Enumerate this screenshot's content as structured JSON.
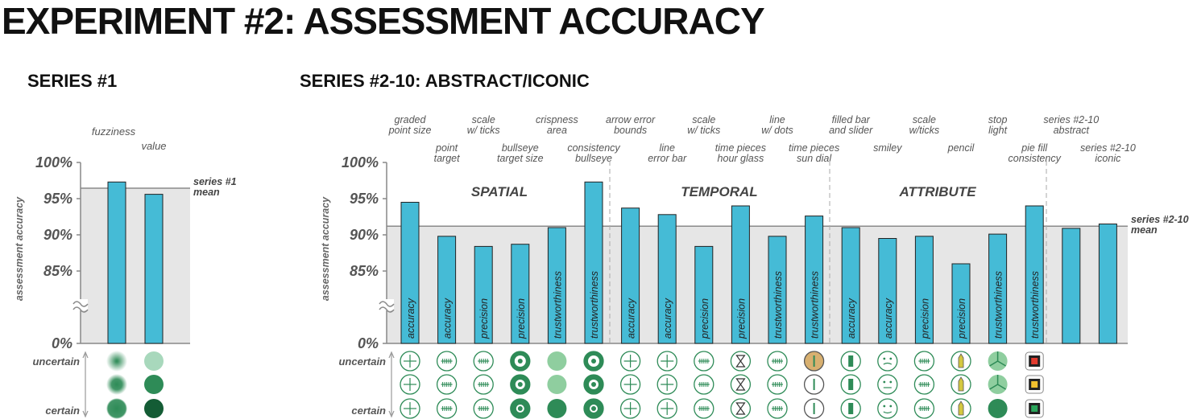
{
  "title": "EXPERIMENT #2:  ASSESSMENT ACCURACY",
  "chart_data": [
    {
      "type": "bar",
      "title": "SERIES #1",
      "ylabel": "assessment accuracy",
      "yticks": [
        "100%",
        "95%",
        "90%",
        "85%",
        "0%"
      ],
      "ylim": [
        80,
        100
      ],
      "axis_break": true,
      "categories": [
        "fuzziness",
        "value"
      ],
      "values": [
        97.3,
        95.6
      ],
      "mean": 96.45,
      "mean_label": [
        "series #1",
        "mean"
      ],
      "color": "#45bbd6",
      "scale_labels": {
        "top": "uncertain",
        "bottom": "certain"
      },
      "glyph_colors": [
        "#5aa97a",
        "#2e8b57",
        "#145c35",
        "#a8d8bc"
      ]
    },
    {
      "type": "bar",
      "title": "SERIES #2-10: ABSTRACT/ICONIC",
      "ylabel": "assessment accuracy",
      "yticks": [
        "100%",
        "95%",
        "90%",
        "85%",
        "0%"
      ],
      "ylim": [
        80,
        100
      ],
      "axis_break": true,
      "groups": [
        "SPATIAL",
        "TEMPORAL",
        "ATTRIBUTE"
      ],
      "categories": [
        [
          "graded",
          "point size"
        ],
        [
          "point",
          "target"
        ],
        [
          "scale",
          "w/ ticks"
        ],
        [
          "bullseye",
          "target size"
        ],
        [
          "crispness",
          "area"
        ],
        [
          "consistency",
          "bullseye"
        ],
        [
          "arrow error",
          "bounds"
        ],
        [
          "line",
          "error bar"
        ],
        [
          "scale",
          "w/ ticks"
        ],
        [
          "time pieces",
          "hour glass"
        ],
        [
          "line",
          "w/ dots"
        ],
        [
          "time pieces",
          "sun dial"
        ],
        [
          "filled bar",
          "and slider"
        ],
        [
          "smiley"
        ],
        [
          "scale",
          "w/ticks"
        ],
        [
          "pencil"
        ],
        [
          "stop",
          "light"
        ],
        [
          "pie fill",
          "consistency"
        ],
        [
          "series #2-10",
          "abstract"
        ],
        [
          "series #2-10",
          "iconic"
        ]
      ],
      "bar_labels": [
        "accuracy",
        "accuracy",
        "precision",
        "precision",
        "trustworthiness",
        "trustworthiness",
        "accuracy",
        "accuracy",
        "precision",
        "precision",
        "trustworthiness",
        "trustworthiness",
        "accuracy",
        "accuracy",
        "precision",
        "precision",
        "trustworthiness",
        "trustworthiness",
        "",
        ""
      ],
      "values": [
        94.5,
        89.8,
        88.4,
        88.7,
        91.0,
        97.3,
        93.7,
        92.8,
        88.4,
        94.0,
        89.8,
        92.6,
        91.0,
        89.5,
        89.8,
        86.0,
        90.1,
        94.0,
        90.9,
        91.5
      ],
      "mean": 91.2,
      "mean_label": [
        "series #2-10",
        "mean"
      ],
      "color": "#45bbd6",
      "scale_labels": {
        "top": "uncertain",
        "bottom": "certain"
      },
      "glyph_colors": [
        "#2e8b57",
        "#8fce9f",
        "#d8b070",
        "#e23b2e",
        "#f2c12e",
        "#2aa55a"
      ]
    }
  ]
}
